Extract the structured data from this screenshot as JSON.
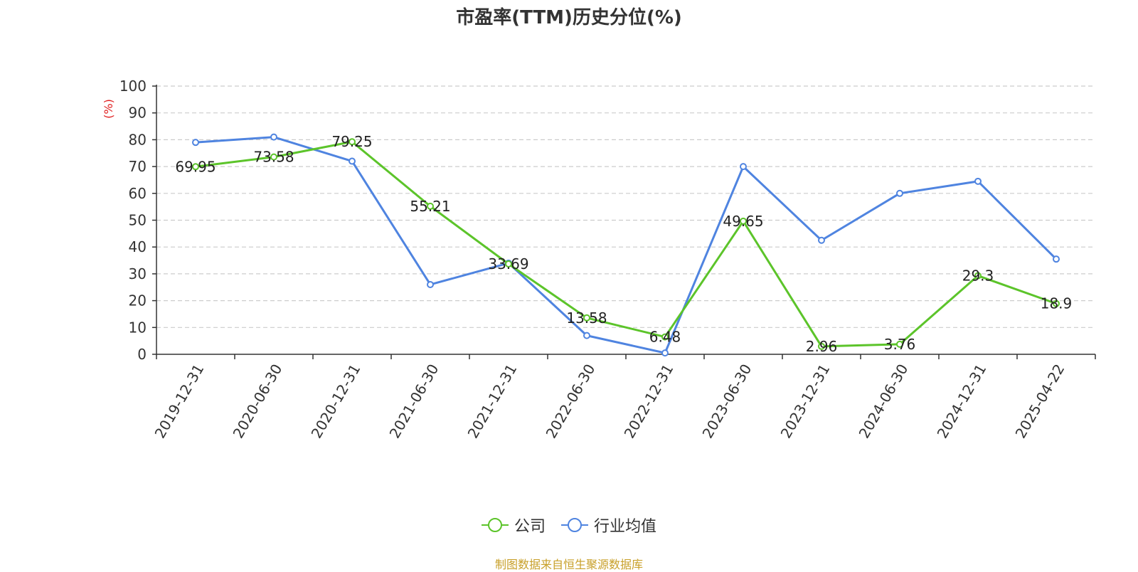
{
  "title": "市盈率(TTM)历史分位(%)",
  "source_note": "制图数据来自恒生聚源数据库",
  "colors": {
    "company": "#5cc42a",
    "industry": "#4f84e0",
    "axis_unit": "#e02020",
    "grid": "#cccccc",
    "source_note": "#c8a02a"
  },
  "chart_data": {
    "type": "line",
    "title": "市盈率(TTM)历史分位(%)",
    "ylabel": "(%)",
    "xlabel": "",
    "ylim": [
      0,
      100
    ],
    "yticks": [
      0,
      10,
      20,
      30,
      40,
      50,
      60,
      70,
      80,
      90,
      100
    ],
    "grid": true,
    "legend_position": "bottom",
    "categories": [
      "2019-12-31",
      "2020-06-30",
      "2020-12-31",
      "2021-06-30",
      "2021-12-31",
      "2022-06-30",
      "2022-12-31",
      "2023-06-30",
      "2023-12-31",
      "2024-06-30",
      "2024-12-31",
      "2025-04-22"
    ],
    "series": [
      {
        "name": "公司",
        "color": "#5cc42a",
        "values": [
          69.95,
          73.58,
          79.25,
          55.21,
          33.69,
          13.58,
          6.48,
          49.65,
          2.96,
          3.76,
          29.3,
          18.9
        ],
        "labels": [
          "69.95",
          "73.58",
          "79.25",
          "55.21",
          "33.69",
          "13.58",
          "6.48",
          "49.65",
          "2.96",
          "3.76",
          "29.3",
          "18.9"
        ]
      },
      {
        "name": "行业均值",
        "color": "#4f84e0",
        "values": [
          79,
          81,
          72,
          26,
          34,
          7,
          0.5,
          70,
          42.5,
          60,
          64.5,
          35.5
        ]
      }
    ]
  }
}
